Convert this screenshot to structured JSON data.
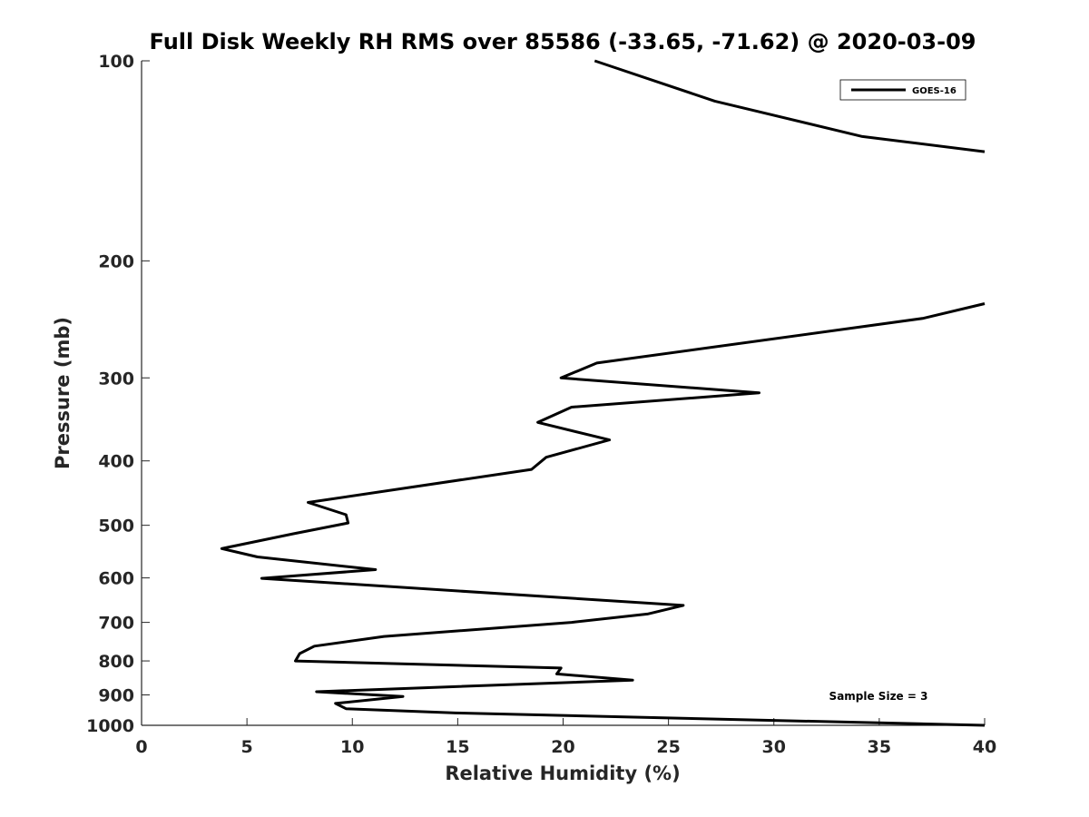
{
  "chart_data": {
    "type": "line",
    "title": "Full Disk Weekly RH RMS over 85586 (-33.65, -71.62) @ 2020-03-09",
    "xlabel": "Relative Humidity (%)",
    "ylabel": "Pressure (mb)",
    "xlim": [
      0,
      40
    ],
    "ylim": [
      100,
      1000
    ],
    "y_scale": "log",
    "y_direction": "reversed",
    "grid": false,
    "legend_position": "top-right",
    "x_ticks": [
      "0",
      "5",
      "10",
      "15",
      "20",
      "25",
      "30",
      "35",
      "40"
    ],
    "y_ticks": [
      "100",
      "200",
      "300",
      "400",
      "500",
      "600",
      "700",
      "800",
      "900",
      "1000"
    ],
    "series": [
      {
        "name": "GOES-16",
        "color": "#000000",
        "x": [
          21.5,
          27.2,
          34.2,
          40.0,
          null,
          40.0,
          37.1,
          21.6,
          19.9,
          29.3,
          20.4,
          18.8,
          22.2,
          19.2,
          18.5,
          7.9,
          9.7,
          9.8,
          7.2,
          3.8,
          5.5,
          11.1,
          5.7,
          25.7,
          24.0,
          20.4,
          11.5,
          8.2,
          7.5,
          7.3,
          19.9,
          19.7,
          23.3,
          8.3,
          12.4,
          9.2,
          9.7,
          14.9,
          40.0
        ],
        "y": [
          100,
          115,
          130,
          137,
          null,
          232,
          244,
          285,
          300,
          316,
          332,
          350,
          372,
          395,
          412,
          462,
          482,
          496,
          515,
          542,
          558,
          583,
          601,
          660,
          680,
          700,
          735,
          760,
          780,
          800,
          820,
          837,
          855,
          890,
          905,
          927,
          944,
          958,
          1000
        ]
      }
    ],
    "annotations": [
      "Sample Size = 3"
    ]
  }
}
